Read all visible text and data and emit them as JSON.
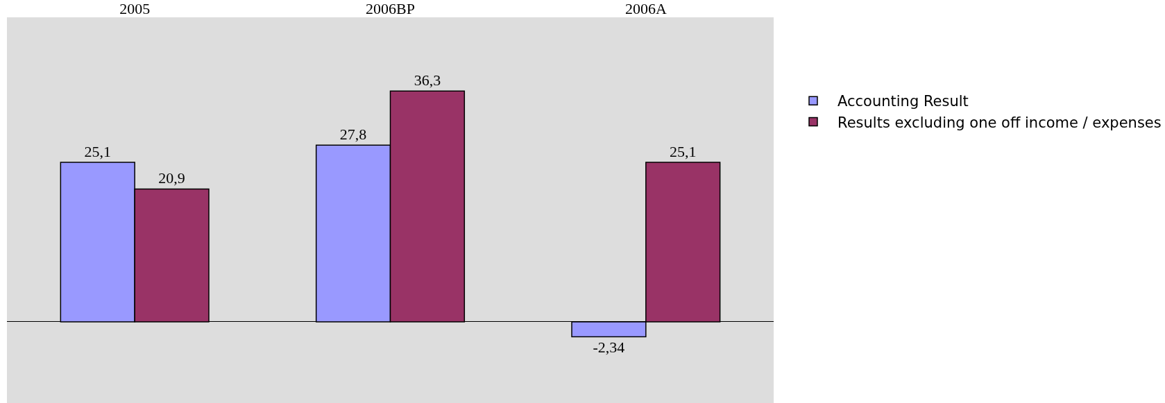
{
  "chart_data": {
    "type": "bar",
    "categories": [
      "2005",
      "2006BP",
      "2006A"
    ],
    "series": [
      {
        "name": "Accounting Result",
        "color": "#9999ff",
        "values": [
          25.1,
          27.8,
          -2.34
        ],
        "value_labels": [
          "25,1",
          "27,8",
          "-2,34"
        ]
      },
      {
        "name": "Results excluding one off income / expenses",
        "color": "#993366",
        "values": [
          20.9,
          36.3,
          25.1
        ],
        "value_labels": [
          "20,9",
          "36,3",
          "25,1"
        ]
      }
    ],
    "relative": false,
    "legend": "right",
    "grid": false
  }
}
